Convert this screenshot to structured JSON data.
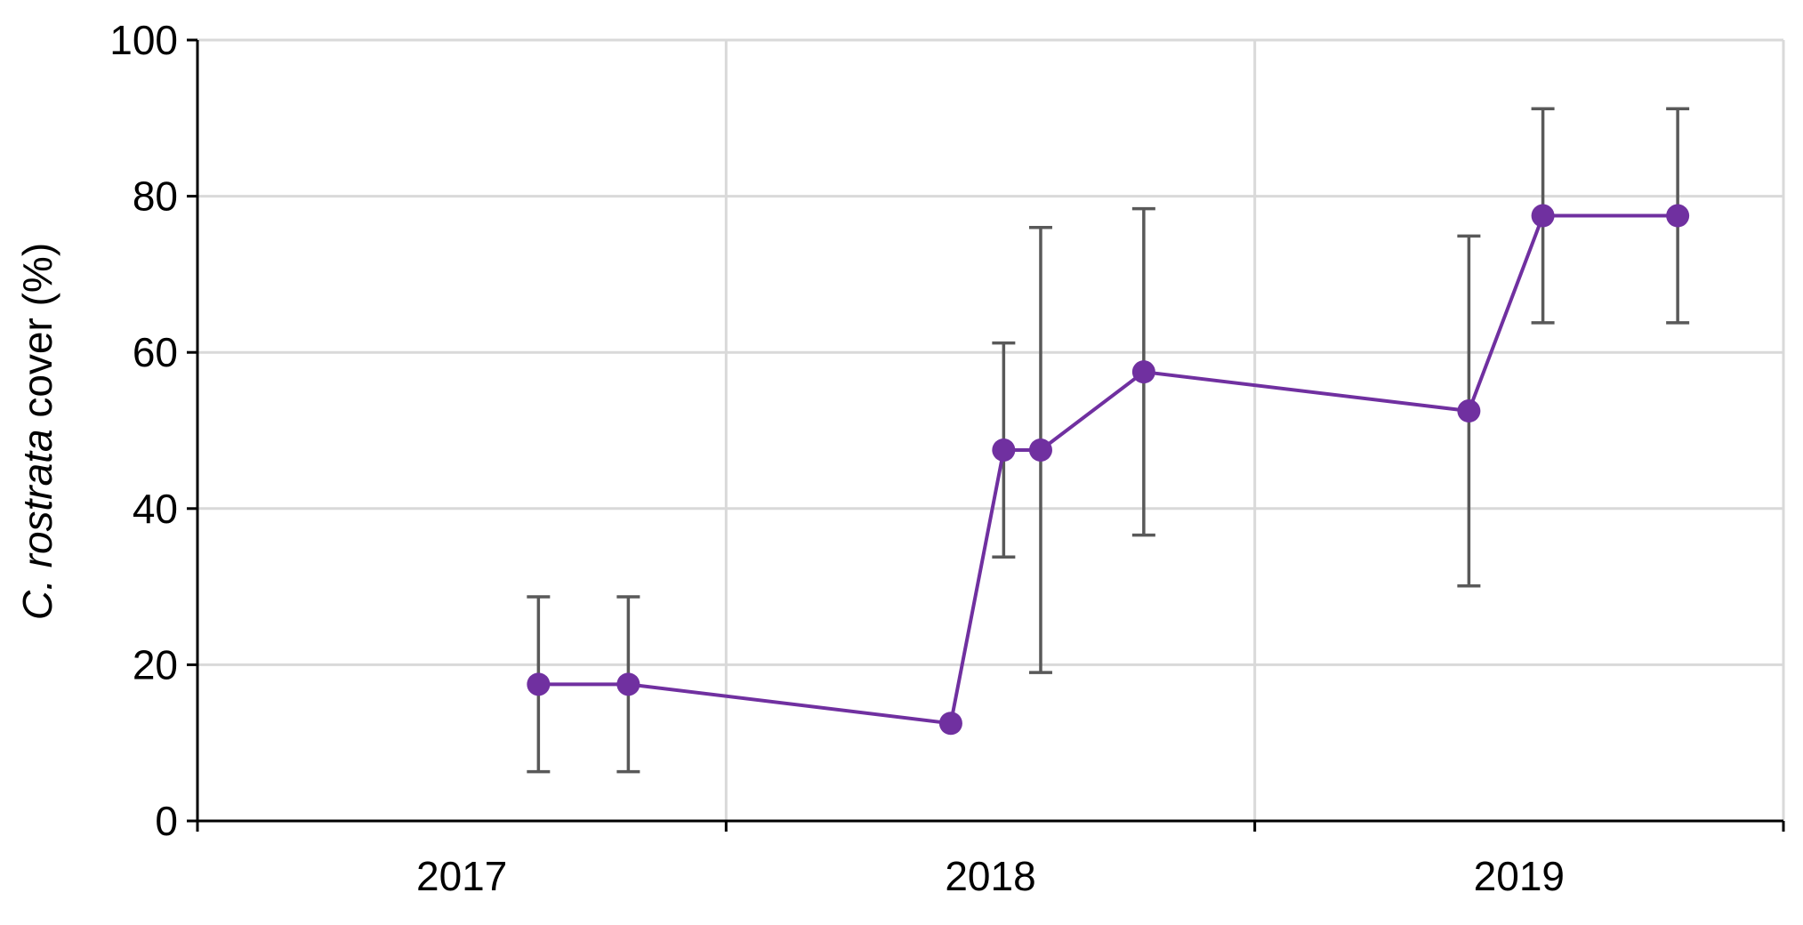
{
  "chart_data": {
    "type": "line",
    "ylabel_prefix": "C. ",
    "ylabel_italic": "rostrata",
    "ylabel_suffix": " cover (%)",
    "xlabel": "",
    "ylim": [
      0,
      100
    ],
    "y_ticks": [
      0,
      20,
      40,
      60,
      80,
      100
    ],
    "x_range": [
      0,
      3
    ],
    "x_tick_positions": [
      0,
      1,
      2,
      3
    ],
    "x_labels": [
      {
        "label": "2017",
        "x": 0.5
      },
      {
        "label": "2018",
        "x": 1.5
      },
      {
        "label": "2019",
        "x": 2.5
      }
    ],
    "grid": true,
    "legend": "none",
    "line_color": "#7030a0",
    "errorbar_color": "#595959",
    "grid_color": "#d9d9d9",
    "series": [
      {
        "points": [
          {
            "x": 0.645,
            "y": 17.5,
            "err_low": 6.3,
            "err_high": 28.7
          },
          {
            "x": 0.815,
            "y": 17.5,
            "err_low": 6.3,
            "err_high": 28.7
          },
          {
            "x": 1.425,
            "y": 12.5
          },
          {
            "x": 1.525,
            "y": 47.5,
            "err_low": 33.8,
            "err_high": 61.2
          },
          {
            "x": 1.595,
            "y": 47.5,
            "err_low": 19.0,
            "err_high": 76.0
          },
          {
            "x": 1.79,
            "y": 57.5,
            "err_low": 36.6,
            "err_high": 78.4
          },
          {
            "x": 2.405,
            "y": 52.5,
            "err_low": 30.1,
            "err_high": 74.9
          },
          {
            "x": 2.545,
            "y": 77.5,
            "err_low": 63.8,
            "err_high": 91.2
          },
          {
            "x": 2.8,
            "y": 77.5,
            "err_low": 63.8,
            "err_high": 91.2
          }
        ]
      }
    ]
  }
}
